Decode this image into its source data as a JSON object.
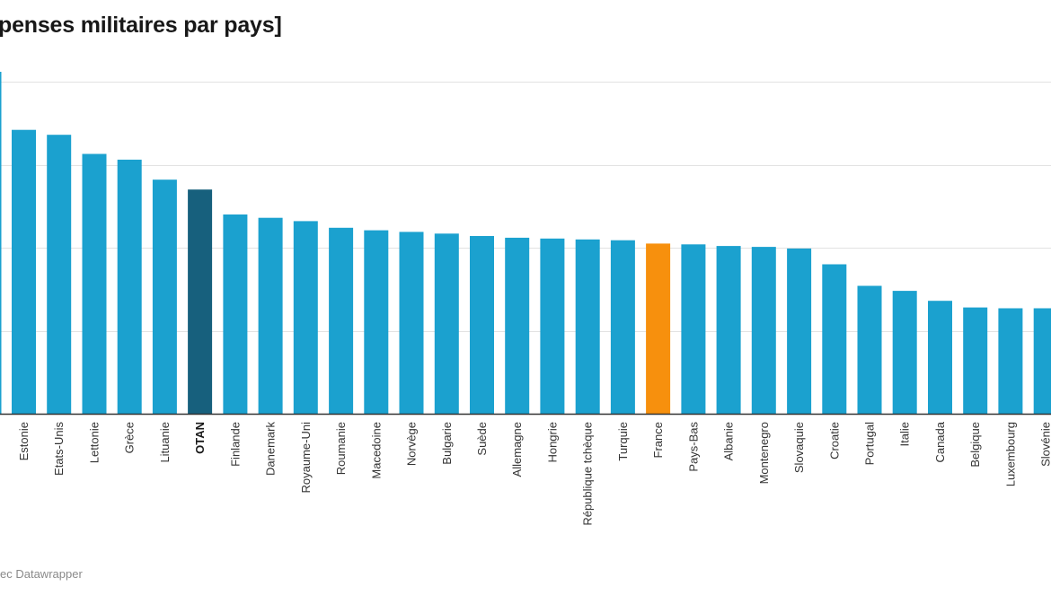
{
  "title": "penses militaires par pays]",
  "footer": "ec Datawrapper",
  "colors": {
    "default": "#1ba1cf",
    "highlight_nato": "#17607d",
    "highlight_france": "#f7900d",
    "grid": "#e2e2e2",
    "axis": "#333333"
  },
  "chart_data": {
    "type": "bar",
    "title": "penses militaires par pays]",
    "categories": [
      "Estonie",
      "Etats-Unis",
      "Lettonie",
      "Grèce",
      "Lituanie",
      "OTAN",
      "Finlande",
      "Danemark",
      "Royaume-Uni",
      "Roumanie",
      "Macedoine",
      "Norvège",
      "Bulgarie",
      "Suède",
      "Allemagne",
      "Hongrie",
      "République tchèque",
      "Turquie",
      "France",
      "Pays-Bas",
      "Albanie",
      "Montenegro",
      "Slovaquie",
      "Croatie",
      "Portugal",
      "Italie",
      "Canada",
      "Belgique",
      "Luxembourg",
      "Slovénie"
    ],
    "values": [
      3.42,
      3.36,
      3.13,
      3.06,
      2.82,
      2.7,
      2.4,
      2.36,
      2.32,
      2.24,
      2.21,
      2.19,
      2.17,
      2.14,
      2.12,
      2.11,
      2.1,
      2.09,
      2.05,
      2.04,
      2.02,
      2.01,
      1.99,
      1.8,
      1.54,
      1.48,
      1.36,
      1.28,
      1.27,
      1.27
    ],
    "ylim": [
      0,
      4
    ],
    "grid": true,
    "highlight": {
      "OTAN": "highlight_nato",
      "France": "highlight_france"
    },
    "bold_labels": [
      "OTAN"
    ]
  }
}
